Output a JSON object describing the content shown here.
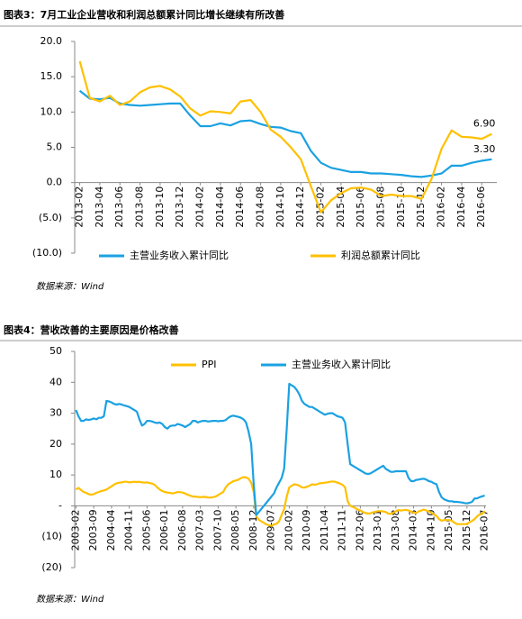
{
  "chart_data": [
    {
      "type": "line",
      "title": "图表3：7月工业企业营收和利润总额累计同比增长继续有所改善",
      "source": "数据来源：Wind",
      "categories": [
        "2013-02",
        null,
        "2013-04",
        null,
        "2013-06",
        null,
        "2013-08",
        null,
        "2013-10",
        null,
        "2013-12",
        null,
        "2014-02",
        null,
        "2014-04",
        null,
        "2014-06",
        null,
        "2014-08",
        null,
        "2014-10",
        null,
        "2014-12",
        null,
        "2015-02",
        null,
        "2015-04",
        null,
        "2015-06",
        null,
        "2015-08",
        null,
        "2015-10",
        null,
        "2015-12",
        null,
        "2016-02",
        null,
        "2016-04",
        null,
        "2016-06",
        null
      ],
      "series": [
        {
          "name": "主营业务收入累计同比",
          "color": "#1ba1e2",
          "values": [
            13.0,
            11.9,
            11.8,
            12.0,
            11.2,
            11.0,
            10.9,
            11.0,
            11.1,
            11.2,
            11.2,
            9.5,
            8.0,
            8.0,
            8.4,
            8.1,
            8.7,
            8.8,
            8.3,
            7.9,
            7.8,
            7.3,
            7.0,
            4.5,
            2.8,
            2.1,
            1.8,
            1.5,
            1.5,
            1.3,
            1.3,
            1.2,
            1.1,
            0.9,
            0.8,
            1.0,
            1.3,
            2.4,
            2.4,
            2.8,
            3.1,
            3.3
          ],
          "value_labels": [
            null,
            null,
            null,
            null,
            null,
            null,
            null,
            null,
            null,
            null,
            null,
            null,
            null,
            null,
            null,
            null,
            null,
            null,
            null,
            null,
            null,
            null,
            null,
            null,
            null,
            null,
            null,
            null,
            null,
            null,
            null,
            null,
            null,
            null,
            null,
            null,
            null,
            null,
            null,
            null,
            null,
            "3.30"
          ]
        },
        {
          "name": "利润总额累计同比",
          "color": "#ffc000",
          "values": [
            17.2,
            12.0,
            11.5,
            12.3,
            11.0,
            11.5,
            12.8,
            13.5,
            13.7,
            13.2,
            12.2,
            10.5,
            9.5,
            10.1,
            10.0,
            9.8,
            11.5,
            11.7,
            10.0,
            7.5,
            6.5,
            5.0,
            3.3,
            -0.5,
            -4.2,
            -2.5,
            -1.5,
            -0.8,
            -0.7,
            -1.0,
            -1.9,
            -1.7,
            -1.9,
            -1.9,
            -2.3,
            0.5,
            4.8,
            7.4,
            6.5,
            6.4,
            6.2,
            6.9
          ],
          "value_labels": [
            null,
            null,
            null,
            null,
            null,
            null,
            null,
            null,
            null,
            null,
            null,
            null,
            null,
            null,
            null,
            null,
            null,
            null,
            null,
            null,
            null,
            null,
            null,
            null,
            null,
            null,
            null,
            null,
            null,
            null,
            null,
            null,
            null,
            null,
            null,
            null,
            null,
            null,
            null,
            null,
            null,
            "6.90"
          ]
        }
      ],
      "ylim": [
        -10,
        20
      ],
      "yticks": [
        {
          "value": 20,
          "label": "20.0"
        },
        {
          "value": 15,
          "label": "15.0"
        },
        {
          "value": 10,
          "label": "10.0"
        },
        {
          "value": 5,
          "label": "5.0"
        },
        {
          "value": 0,
          "label": "0.0"
        },
        {
          "value": -5,
          "label": "(5.0)"
        },
        {
          "value": -10,
          "label": "(10.0)"
        }
      ],
      "legend": "bottom"
    },
    {
      "type": "line",
      "title": "图表4：营收改善的主要原因是价格改善",
      "source": "数据来源：Wind",
      "categories": [
        "2003-02",
        null,
        null,
        null,
        null,
        null,
        null,
        "2003-09",
        null,
        null,
        null,
        null,
        null,
        null,
        "2004-04",
        null,
        null,
        null,
        null,
        null,
        null,
        "2004-11",
        null,
        null,
        null,
        null,
        null,
        null,
        "2005-06",
        null,
        null,
        null,
        null,
        null,
        null,
        "2006-01",
        null,
        null,
        null,
        null,
        null,
        null,
        "2006-08",
        null,
        null,
        null,
        null,
        null,
        null,
        "2007-03",
        null,
        null,
        null,
        null,
        null,
        null,
        "2007-10",
        null,
        null,
        null,
        null,
        null,
        null,
        "2008-05",
        null,
        null,
        null,
        null,
        null,
        null,
        "2008-12",
        null,
        null,
        null,
        null,
        null,
        null,
        "2009-07",
        null,
        null,
        null,
        null,
        null,
        null,
        "2010-02",
        null,
        null,
        null,
        null,
        null,
        null,
        "2010-09",
        null,
        null,
        null,
        null,
        null,
        null,
        "2011-04",
        null,
        null,
        null,
        null,
        null,
        null,
        "2011-11",
        null,
        null,
        null,
        null,
        null,
        null,
        "2012-06",
        null,
        null,
        null,
        null,
        null,
        null,
        "2013-01",
        null,
        null,
        null,
        null,
        null,
        null,
        "2013-08",
        null,
        null,
        null,
        null,
        null,
        null,
        "2014-03",
        null,
        null,
        null,
        null,
        null,
        null,
        "2014-10",
        null,
        null,
        null,
        null,
        null,
        null,
        "2015-05",
        null,
        null,
        null,
        null,
        null,
        null,
        "2015-12",
        null,
        null,
        null,
        null,
        null,
        null,
        "2016-07"
      ],
      "series": [
        {
          "name": "PPI",
          "color": "#ffc000",
          "values": [
            5.3,
            5.8,
            5.1,
            4.5,
            4.2,
            3.8,
            3.6,
            3.8,
            4.2,
            4.5,
            4.8,
            5.0,
            5.3,
            5.8,
            6.3,
            6.9,
            7.3,
            7.5,
            7.6,
            7.8,
            7.8,
            7.6,
            7.7,
            7.8,
            7.7,
            7.8,
            7.6,
            7.5,
            7.6,
            7.4,
            7.2,
            6.8,
            6.0,
            5.3,
            4.8,
            4.5,
            4.3,
            4.2,
            4.0,
            4.2,
            4.5,
            4.4,
            4.3,
            4.0,
            3.6,
            3.3,
            3.0,
            3.0,
            2.9,
            2.8,
            2.9,
            2.9,
            2.7,
            2.7,
            2.8,
            3.0,
            3.5,
            4.0,
            4.5,
            6.0,
            7.0,
            7.5,
            8.0,
            8.2,
            8.5,
            9.0,
            9.3,
            9.2,
            8.8,
            7.5,
            4.5,
            -3.3,
            -4.5,
            -5.0,
            -5.5,
            -6.0,
            -6.3,
            -6.5,
            -6.0,
            -5.8,
            -5.0,
            -3.0,
            -1.0,
            3.0,
            6.0,
            6.5,
            7.0,
            6.8,
            6.5,
            6.0,
            5.9,
            6.2,
            6.5,
            7.0,
            6.8,
            7.0,
            7.3,
            7.4,
            7.5,
            7.6,
            7.8,
            7.9,
            7.8,
            7.5,
            7.2,
            6.8,
            6.0,
            1.5,
            0.0,
            -0.3,
            -0.7,
            -1.2,
            -1.5,
            -2.0,
            -2.3,
            -2.5,
            -2.4,
            -2.1,
            -1.9,
            -1.7,
            -1.7,
            -1.8,
            -2.0,
            -2.5,
            -2.6,
            -2.3,
            -1.7,
            -1.4,
            -1.5,
            -1.4,
            -1.3,
            -1.5,
            -1.9,
            -2.2,
            -2.3,
            -1.8,
            -1.5,
            -1.2,
            -1.5,
            -1.8,
            -2.2,
            -2.8,
            -3.3,
            -4.3,
            -4.8,
            -4.6,
            -4.6,
            -4.6,
            -4.8,
            -5.4,
            -5.9,
            -5.9,
            -5.9,
            -5.9,
            -5.9,
            -5.3,
            -4.9,
            -4.3,
            -3.4,
            -2.8,
            -2.6,
            -1.7
          ]
        },
        {
          "name": "主营业务收入累计同比",
          "color": "#1ba1e2",
          "values": [
            31.0,
            29.0,
            27.5,
            27.5,
            28.0,
            27.8,
            28.0,
            28.3,
            28.0,
            28.5,
            28.5,
            29.0,
            34.0,
            33.8,
            33.5,
            33.0,
            32.8,
            33.0,
            32.8,
            32.5,
            32.3,
            32.0,
            31.5,
            31.0,
            30.5,
            28.0,
            26.0,
            26.5,
            27.5,
            27.5,
            27.3,
            27.0,
            26.8,
            27.0,
            26.5,
            25.5,
            25.0,
            25.8,
            26.0,
            26.0,
            26.5,
            26.3,
            26.0,
            25.5,
            26.0,
            26.5,
            27.5,
            27.5,
            27.0,
            27.3,
            27.5,
            27.5,
            27.3,
            27.4,
            27.5,
            27.5,
            27.4,
            27.5,
            27.5,
            27.8,
            28.5,
            29.0,
            29.2,
            29.0,
            28.8,
            28.5,
            28.0,
            27.0,
            24.0,
            20.0,
            7.0,
            -3.0,
            -2.0,
            -1.0,
            0.0,
            1.0,
            2.0,
            3.0,
            4.0,
            6.0,
            7.5,
            9.0,
            12.0,
            25.0,
            39.5,
            39.0,
            38.5,
            37.5,
            36.0,
            34.0,
            33.0,
            32.5,
            32.0,
            32.0,
            31.5,
            31.0,
            30.5,
            30.0,
            29.5,
            29.8,
            30.0,
            30.0,
            29.5,
            29.0,
            28.8,
            28.5,
            27.0,
            20.0,
            13.5,
            13.0,
            12.5,
            12.0,
            11.5,
            11.0,
            10.5,
            10.3,
            10.5,
            11.0,
            11.5,
            12.0,
            12.5,
            13.0,
            12.0,
            11.5,
            11.0,
            11.0,
            11.2,
            11.2,
            11.2,
            11.2,
            11.2,
            9.0,
            8.0,
            8.0,
            8.4,
            8.5,
            8.7,
            8.8,
            8.5,
            8.0,
            7.8,
            7.3,
            7.0,
            4.5,
            2.8,
            2.1,
            1.8,
            1.5,
            1.5,
            1.3,
            1.3,
            1.2,
            1.1,
            0.9,
            0.8,
            1.0,
            1.3,
            2.4,
            2.4,
            2.8,
            3.1,
            3.3
          ]
        }
      ],
      "ylim": [
        -20,
        50
      ],
      "yticks": [
        50,
        40,
        30,
        20,
        10,
        {
          "value": 0,
          "label": "-"
        },
        {
          "value": -10,
          "label": "(10)"
        },
        {
          "value": -20,
          "label": "(20)"
        }
      ],
      "legend": "top"
    }
  ]
}
